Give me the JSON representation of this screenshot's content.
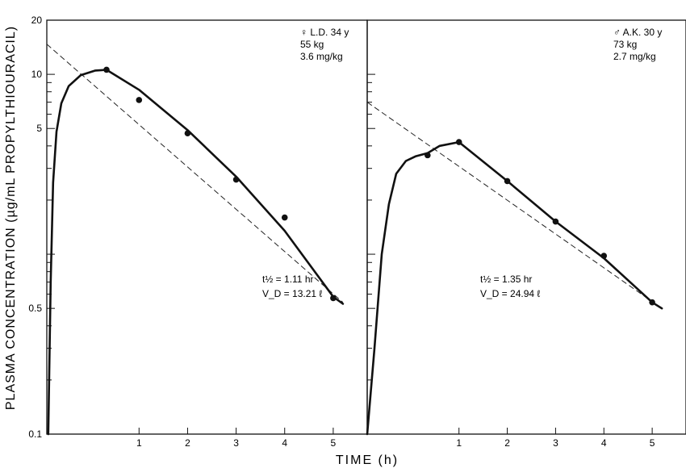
{
  "chart_data": [
    {
      "type": "scatter",
      "panel": "left",
      "ylabel": "PLASMA CONCENTRATION (µg/mL PROPYLTHIOURACIL)",
      "xlabel": "TIME (h)",
      "yscale": "log",
      "ylim": [
        0.1,
        20
      ],
      "xlim": [
        -0.9,
        5.7
      ],
      "yticks": [
        0.1,
        0.5,
        5,
        10,
        20
      ],
      "ytick_labels": [
        "0.1",
        "0.5",
        "5",
        "10",
        "20"
      ],
      "xticks": [
        1,
        2,
        3,
        4,
        5
      ],
      "xtick_labels": [
        "1",
        "2",
        "3",
        "4",
        "5"
      ],
      "subject": [
        "♀ L.D. 34 y",
        "55 kg",
        "3.6 mg/kg"
      ],
      "annotation": [
        "t½ = 1.11 hr",
        "V_D = 13.21 ℓ"
      ],
      "points": {
        "x": [
          0.33,
          1.0,
          2.0,
          3.0,
          4.0,
          5.0
        ],
        "y": [
          10.6,
          7.2,
          4.7,
          2.6,
          1.6,
          0.57
        ]
      },
      "fit_curve": {
        "x": [
          -0.87,
          -0.82,
          -0.77,
          -0.7,
          -0.6,
          -0.45,
          -0.2,
          0.1,
          0.33,
          1.0,
          2.0,
          3.0,
          4.0,
          5.0,
          5.2
        ],
        "y": [
          0.1,
          0.7,
          2.5,
          4.8,
          6.9,
          8.6,
          9.9,
          10.5,
          10.6,
          8.2,
          4.9,
          2.7,
          1.35,
          0.58,
          0.53
        ]
      },
      "elimination_line": {
        "x": [
          -0.9,
          5.2
        ],
        "y": [
          14.7,
          0.54
        ]
      }
    },
    {
      "type": "scatter",
      "panel": "right",
      "xlabel": "TIME (h)",
      "yscale": "log",
      "ylim": [
        0.1,
        20
      ],
      "xlim": [
        -0.9,
        5.7
      ],
      "xticks": [
        1,
        2,
        3,
        4,
        5
      ],
      "xtick_labels": [
        "1",
        "2",
        "3",
        "4",
        "5"
      ],
      "subject": [
        "♂ A.K. 30 y",
        "73 kg",
        "2.7 mg/kg"
      ],
      "annotation": [
        "t½ = 1.35 hr",
        "V_D = 24.94 ℓ"
      ],
      "points": {
        "x": [
          0.35,
          1.0,
          2.0,
          3.0,
          4.0,
          5.0
        ],
        "y": [
          3.55,
          4.2,
          2.55,
          1.52,
          0.98,
          0.54
        ]
      },
      "fit_curve": {
        "x": [
          -0.9,
          -0.75,
          -0.6,
          -0.45,
          -0.3,
          -0.1,
          0.1,
          0.35,
          0.6,
          1.0,
          2.0,
          3.0,
          4.0,
          5.0,
          5.2
        ],
        "y": [
          0.1,
          0.3,
          1.0,
          1.9,
          2.8,
          3.3,
          3.5,
          3.65,
          4.0,
          4.2,
          2.55,
          1.52,
          0.95,
          0.54,
          0.5
        ]
      },
      "elimination_line": {
        "x": [
          -0.9,
          5.2
        ],
        "y": [
          7.0,
          0.5
        ]
      }
    }
  ],
  "page": {
    "xlabel": "TIME (h)"
  }
}
